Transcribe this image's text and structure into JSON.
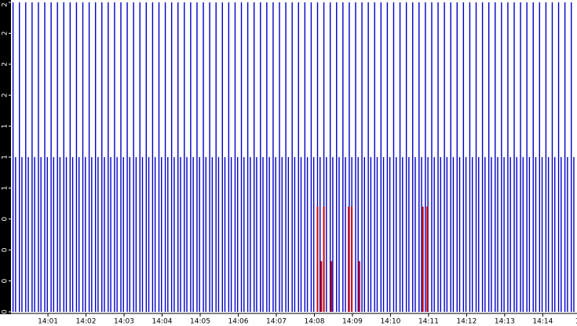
{
  "chart_data": {
    "type": "stripe",
    "xlim": [
      3,
      894
    ],
    "ylim": [
      0,
      2.5
    ],
    "xticks": [
      {
        "value": 60,
        "label": "14:01"
      },
      {
        "value": 120,
        "label": "14:02"
      },
      {
        "value": 180,
        "label": "14:03"
      },
      {
        "value": 240,
        "label": "14:04"
      },
      {
        "value": 300,
        "label": "14:05"
      },
      {
        "value": 360,
        "label": "14:06"
      },
      {
        "value": 420,
        "label": "14:07"
      },
      {
        "value": 480,
        "label": "14:08"
      },
      {
        "value": 540,
        "label": "14:09"
      },
      {
        "value": 600,
        "label": "14:10"
      },
      {
        "value": 660,
        "label": "14:11"
      },
      {
        "value": 720,
        "label": "14:12"
      },
      {
        "value": 780,
        "label": "14:13"
      },
      {
        "value": 840,
        "label": "14:14"
      },
      {
        "value": 900,
        "label": "14:"
      }
    ],
    "yticks": [
      {
        "value": 0,
        "label": "0"
      },
      {
        "value": 0.25,
        "label": "0"
      },
      {
        "value": 0.5,
        "label": "0"
      },
      {
        "value": 0.75,
        "label": "0"
      },
      {
        "value": 1,
        "label": "1"
      },
      {
        "value": 1.25,
        "label": "1"
      },
      {
        "value": 1.5,
        "label": "1"
      },
      {
        "value": 1.75,
        "label": "2"
      },
      {
        "value": 2,
        "label": "2"
      },
      {
        "value": 2.25,
        "label": "2"
      },
      {
        "value": 2.5,
        "label": "2"
      }
    ],
    "series": [
      {
        "color": "#0000c8",
        "x": [
          5,
          15,
          25,
          35,
          45,
          55,
          65,
          75,
          85,
          95,
          105,
          115,
          125,
          135,
          145,
          155,
          165,
          175,
          185,
          195,
          205,
          215,
          225,
          235,
          245,
          255,
          265,
          275,
          285,
          295,
          305,
          315,
          325,
          335,
          345,
          355,
          365,
          375,
          385,
          395,
          405,
          415,
          425,
          435,
          445,
          455,
          465,
          475,
          485,
          495,
          505,
          515,
          525,
          535,
          545,
          555,
          565,
          575,
          585,
          595,
          605,
          615,
          625,
          635,
          645,
          655,
          665,
          675,
          685,
          695,
          705,
          715,
          725,
          735,
          745,
          755,
          765,
          775,
          785,
          795,
          805,
          815,
          825,
          835,
          845,
          855,
          865,
          875,
          885
        ],
        "values": [
          2.5,
          2.5,
          2.5,
          2.5,
          2.5,
          2.5,
          2.5,
          2.5,
          2.5,
          2.5,
          2.5,
          2.5,
          2.5,
          2.5,
          2.5,
          2.5,
          2.5,
          2.5,
          2.5,
          2.5,
          2.5,
          2.5,
          2.5,
          2.5,
          2.5,
          2.5,
          2.5,
          2.5,
          2.5,
          2.5,
          2.5,
          2.5,
          2.5,
          2.5,
          2.5,
          2.5,
          2.5,
          2.5,
          2.5,
          2.5,
          2.5,
          2.5,
          2.5,
          2.5,
          2.5,
          2.5,
          2.5,
          2.5,
          2.5,
          2.5,
          2.5,
          2.5,
          2.5,
          2.5,
          2.5,
          2.5,
          2.5,
          2.5,
          2.5,
          2.5,
          2.5,
          2.5,
          2.5,
          2.5,
          2.5,
          2.5,
          2.5,
          2.5,
          2.5,
          2.5,
          2.5,
          2.5,
          2.5,
          2.5,
          2.5,
          2.5,
          2.5,
          2.5,
          2.5,
          2.5,
          2.5,
          2.5,
          2.5,
          2.5,
          2.5,
          2.5,
          2.5,
          2.5,
          2.5
        ]
      },
      {
        "color": "#0000c8",
        "x": [
          9,
          19,
          29,
          39,
          49,
          59,
          69,
          79,
          89,
          99,
          109,
          119,
          129,
          139,
          149,
          159,
          169,
          179,
          189,
          199,
          209,
          219,
          229,
          239,
          249,
          259,
          269,
          279,
          289,
          299,
          309,
          319,
          329,
          339,
          349,
          359,
          369,
          379,
          389,
          399,
          409,
          419,
          429,
          439,
          449,
          459,
          469,
          479,
          489,
          499,
          509,
          519,
          529,
          539,
          549,
          559,
          569,
          579,
          589,
          599,
          609,
          619,
          629,
          639,
          649,
          659,
          669,
          679,
          689,
          699,
          709,
          719,
          729,
          739,
          749,
          759,
          769,
          779,
          789,
          799,
          809,
          819,
          829,
          839,
          849,
          859,
          869,
          879,
          889
        ],
        "values": [
          1.25,
          1.25,
          1.25,
          1.25,
          1.25,
          1.25,
          1.25,
          1.25,
          1.25,
          1.25,
          1.25,
          1.25,
          1.25,
          1.25,
          1.25,
          1.25,
          1.25,
          1.25,
          1.25,
          1.25,
          1.25,
          1.25,
          1.25,
          1.25,
          1.25,
          1.25,
          1.25,
          1.25,
          1.25,
          1.25,
          1.25,
          1.25,
          1.25,
          1.25,
          1.25,
          1.25,
          1.25,
          1.25,
          1.25,
          1.25,
          1.25,
          1.25,
          1.25,
          1.25,
          1.25,
          1.25,
          1.25,
          1.25,
          1.25,
          1.25,
          1.25,
          1.25,
          1.25,
          1.25,
          1.25,
          1.25,
          1.25,
          1.25,
          1.25,
          1.25,
          1.25,
          1.25,
          1.25,
          1.25,
          1.25,
          1.25,
          1.25,
          1.25,
          1.25,
          1.25,
          1.25,
          1.25,
          1.25,
          1.25,
          1.25,
          1.25,
          1.25,
          1.25,
          1.25,
          1.25,
          1.25,
          1.25,
          1.25,
          1.25,
          1.25,
          1.25,
          1.25,
          1.25,
          1.25
        ]
      },
      {
        "color": "#d00000",
        "x": [
          485,
          491,
          495,
          507,
          534,
          539,
          551,
          651,
          658
        ],
        "values": [
          0.85,
          0.41,
          0.85,
          0.41,
          0.85,
          0.85,
          0.41,
          0.85,
          0.85
        ]
      }
    ]
  }
}
